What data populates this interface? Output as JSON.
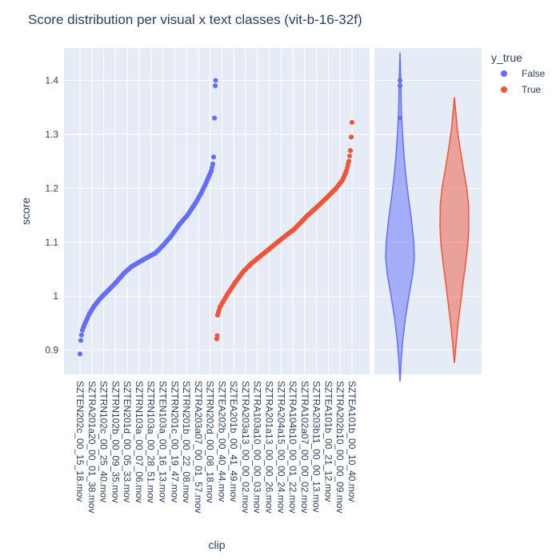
{
  "chart_data": {
    "type": "scatter",
    "title": "Score distribution per visual x text classes (vit-b-16-32f)",
    "xlabel": "clip",
    "ylabel": "score",
    "ylim": [
      0.855,
      1.46
    ],
    "grid": true,
    "legend_placement": "top-right",
    "y_ticks": [
      {
        "value": 0.9,
        "label": "0.9"
      },
      {
        "value": 1.0,
        "label": "1"
      },
      {
        "value": 1.1,
        "label": "1.1"
      },
      {
        "value": 1.2,
        "label": "1.2"
      },
      {
        "value": 1.3,
        "label": "1.3"
      },
      {
        "value": 1.4,
        "label": "1.4"
      }
    ],
    "x_ticks": [
      "SZTEN202c_00_15_18.mov",
      "SZTRA201a20_00_01_38.mov",
      "SZTRN102c_00_25_40.mov",
      "SZTRN102b_00_09_35.mov",
      "SZTEN201d_00_05_33.mov",
      "SZTRN103a_00_07_06.mov",
      "SZTRN103a_00_28_51.mov",
      "SZTEN103a_00_16_13.mov",
      "SZTRN201c_00_19_47.mov",
      "SZTRN201b_00_22_08.mov",
      "SZTRA203a07_00_01_57.mov",
      "SZTRN202d_00_08_18.mov",
      "SZTEA202b_00_40_44.mov",
      "SZTEA201b_00_41_49.mov",
      "SZTRA203a13_00_00_02.mov",
      "SZTRA103a10_00_00_03.mov",
      "SZTRA201a13_00_00_26.mov",
      "SZTRA204a15_00_00_24.mov",
      "SZTRA104b10_00_01_22.mov",
      "SZTRA102a07_00_00_02.mov",
      "SZTRA203b11_00_00_13.mov",
      "SZTEA101b_00_21_12.mov",
      "SZTRA202b10_00_00_09.mov",
      "SZTEA101b_00_10_40.mov"
    ],
    "legend": {
      "title": "y_true",
      "entries": [
        {
          "label": "False",
          "color": "#636efa"
        },
        {
          "label": "True",
          "color": "#ef553b"
        }
      ]
    },
    "series": [
      {
        "name": "False",
        "color": "#636efa",
        "x_range": [
          0,
          170
        ],
        "curve": [
          [
            0,
            0.893
          ],
          [
            1,
            0.918
          ],
          [
            2,
            0.928
          ],
          [
            3,
            0.937
          ],
          [
            5,
            0.945
          ],
          [
            8,
            0.955
          ],
          [
            12,
            0.968
          ],
          [
            18,
            0.982
          ],
          [
            25,
            0.995
          ],
          [
            35,
            1.01
          ],
          [
            45,
            1.025
          ],
          [
            55,
            1.042
          ],
          [
            65,
            1.055
          ],
          [
            80,
            1.068
          ],
          [
            95,
            1.08
          ],
          [
            105,
            1.095
          ],
          [
            115,
            1.112
          ],
          [
            125,
            1.133
          ],
          [
            135,
            1.15
          ],
          [
            145,
            1.172
          ],
          [
            152,
            1.19
          ],
          [
            158,
            1.208
          ],
          [
            162,
            1.222
          ],
          [
            165,
            1.232
          ],
          [
            167,
            1.245
          ],
          [
            168,
            1.258
          ],
          [
            169,
            1.33
          ],
          [
            170,
            1.39
          ],
          [
            170.5,
            1.4
          ]
        ],
        "violin": {
          "y_range": [
            0.842,
            1.451
          ],
          "profile": [
            [
              0.842,
              0.0
            ],
            [
              0.88,
              0.08
            ],
            [
              0.92,
              0.2
            ],
            [
              0.96,
              0.38
            ],
            [
              1.0,
              0.62
            ],
            [
              1.04,
              0.88
            ],
            [
              1.07,
              1.0
            ],
            [
              1.1,
              0.96
            ],
            [
              1.14,
              0.8
            ],
            [
              1.18,
              0.6
            ],
            [
              1.22,
              0.42
            ],
            [
              1.26,
              0.28
            ],
            [
              1.3,
              0.18
            ],
            [
              1.34,
              0.1
            ],
            [
              1.38,
              0.07
            ],
            [
              1.42,
              0.03
            ],
            [
              1.451,
              0.0
            ]
          ],
          "outliers": [
            1.33,
            1.39,
            1.4
          ]
        }
      },
      {
        "name": "True",
        "color": "#ef553b",
        "x_range": [
          172,
          342
        ],
        "curve": [
          [
            172,
            0.921
          ],
          [
            172.5,
            0.927
          ],
          [
            173,
            0.965
          ],
          [
            174,
            0.97
          ],
          [
            176,
            0.98
          ],
          [
            180,
            0.99
          ],
          [
            186,
            1.005
          ],
          [
            195,
            1.025
          ],
          [
            205,
            1.045
          ],
          [
            215,
            1.06
          ],
          [
            225,
            1.072
          ],
          [
            240,
            1.09
          ],
          [
            255,
            1.108
          ],
          [
            270,
            1.125
          ],
          [
            285,
            1.148
          ],
          [
            300,
            1.168
          ],
          [
            312,
            1.185
          ],
          [
            322,
            1.2
          ],
          [
            330,
            1.215
          ],
          [
            335,
            1.232
          ],
          [
            338,
            1.25
          ],
          [
            340,
            1.27
          ],
          [
            341,
            1.295
          ],
          [
            342,
            1.322
          ]
        ],
        "violin": {
          "y_range": [
            0.876,
            1.369
          ],
          "profile": [
            [
              0.876,
              0.0
            ],
            [
              0.9,
              0.08
            ],
            [
              0.94,
              0.22
            ],
            [
              0.98,
              0.4
            ],
            [
              1.02,
              0.58
            ],
            [
              1.06,
              0.78
            ],
            [
              1.1,
              0.95
            ],
            [
              1.13,
              1.0
            ],
            [
              1.17,
              0.98
            ],
            [
              1.2,
              0.86
            ],
            [
              1.24,
              0.6
            ],
            [
              1.28,
              0.36
            ],
            [
              1.31,
              0.2
            ],
            [
              1.34,
              0.1
            ],
            [
              1.369,
              0.0
            ]
          ],
          "outliers": []
        }
      }
    ]
  }
}
